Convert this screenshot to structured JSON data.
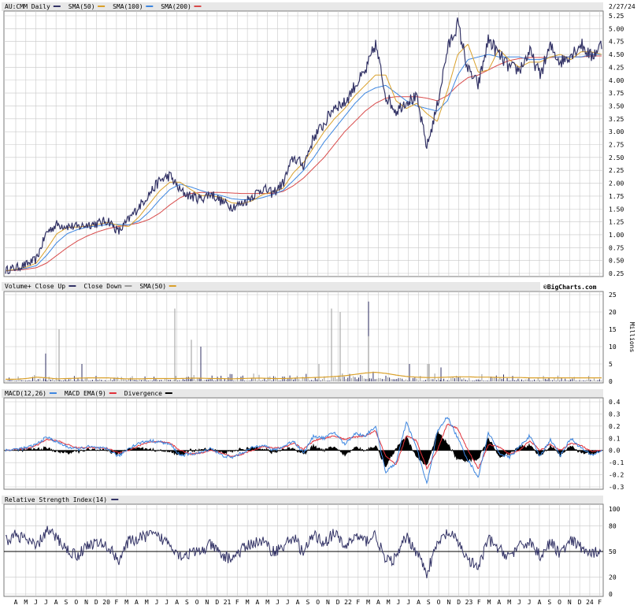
{
  "date_label": "2/27/24",
  "brand": "©BigCharts.com",
  "colors": {
    "price": "#333366",
    "sma50": "#d9a02a",
    "sma100": "#3d86e0",
    "sma200": "#d84b4b",
    "volume": "#333366",
    "volume_down": "#9a9a9a",
    "macd": "#3d86e0",
    "macd_ema": "#e0303a",
    "divergence": "#000000",
    "rsi": "#333366"
  },
  "panels": {
    "price": {
      "legend": [
        {
          "label": "AU:CMM Daily",
          "color": "#333366"
        },
        {
          "label": "SMA(50)",
          "color": "#d9a02a"
        },
        {
          "label": "SMA(100)",
          "color": "#3d86e0"
        },
        {
          "label": "SMA(200)",
          "color": "#d84b4b"
        }
      ]
    },
    "volume": {
      "legend": [
        {
          "label": "Volume+ Close Up",
          "color": "#333366"
        },
        {
          "label": "Close Down",
          "color": "#9a9a9a"
        },
        {
          "label": "SMA(50)",
          "color": "#d9a02a"
        }
      ],
      "unit_label": "Millions"
    },
    "macd": {
      "legend": [
        {
          "label": "MACD(12,26)",
          "color": "#3d86e0"
        },
        {
          "label": "MACD EMA(9)",
          "color": "#e0303a"
        },
        {
          "label": "Divergence",
          "color": "#000000"
        }
      ]
    },
    "rsi": {
      "legend": [
        {
          "label": "Relative Strength Index(14)",
          "color": "#333366"
        }
      ]
    }
  },
  "chart_data": [
    {
      "type": "line",
      "panel": "price",
      "grid": true,
      "ylim": [
        0.25,
        5.25
      ],
      "yticks": [
        "5.25",
        "5.00",
        "4.75",
        "4.50",
        "4.25",
        "4.00",
        "3.75",
        "3.50",
        "3.25",
        "3.00",
        "2.75",
        "2.50",
        "2.25",
        "2.00",
        "1.75",
        "1.50",
        "1.25",
        "1.00",
        "0.75",
        "0.50",
        "0.25"
      ],
      "xticks": [
        "A",
        "M",
        "J",
        "J",
        "A",
        "S",
        "O",
        "N",
        "D",
        "20",
        "F",
        "M",
        "A",
        "M",
        "J",
        "J",
        "A",
        "S",
        "O",
        "N",
        "D",
        "21",
        "F",
        "M",
        "A",
        "M",
        "J",
        "J",
        "A",
        "S",
        "O",
        "N",
        "D",
        "22",
        "F",
        "M",
        "A",
        "M",
        "J",
        "J",
        "A",
        "S",
        "O",
        "N",
        "D",
        "23",
        "F",
        "M",
        "A",
        "M",
        "J",
        "J",
        "A",
        "S",
        "O",
        "N",
        "D",
        "24",
        "F"
      ],
      "x_note": "monthly, April 2019 to February 2024",
      "series": [
        {
          "name": "AU:CMM Daily",
          "values": [
            0.31,
            0.36,
            0.42,
            0.52,
            1.05,
            1.2,
            1.17,
            1.15,
            1.2,
            1.22,
            1.28,
            1.05,
            1.3,
            1.55,
            1.8,
            2.05,
            2.15,
            1.85,
            1.75,
            1.7,
            1.8,
            1.65,
            1.55,
            1.6,
            1.75,
            1.9,
            1.8,
            2.0,
            2.5,
            2.35,
            2.9,
            3.15,
            3.5,
            3.55,
            3.9,
            4.15,
            4.7,
            3.7,
            3.4,
            3.6,
            3.65,
            2.7,
            3.5,
            4.6,
            5.1,
            4.2,
            3.9,
            4.8,
            4.5,
            4.25,
            4.2,
            4.55,
            4.1,
            4.65,
            4.35,
            4.5,
            4.7,
            4.45,
            4.7
          ]
        },
        {
          "name": "SMA(50)",
          "values": [
            0.3,
            0.33,
            0.37,
            0.45,
            0.72,
            1.02,
            1.14,
            1.15,
            1.17,
            1.2,
            1.24,
            1.18,
            1.16,
            1.35,
            1.6,
            1.85,
            2.02,
            2.02,
            1.88,
            1.76,
            1.76,
            1.72,
            1.62,
            1.6,
            1.66,
            1.78,
            1.83,
            1.9,
            2.2,
            2.4,
            2.7,
            3.0,
            3.25,
            3.45,
            3.7,
            3.9,
            4.1,
            4.1,
            3.6,
            3.45,
            3.55,
            3.35,
            3.2,
            3.8,
            4.5,
            4.7,
            4.15,
            4.2,
            4.6,
            4.4,
            4.25,
            4.35,
            4.35,
            4.45,
            4.5,
            4.4,
            4.55,
            4.55,
            4.5
          ]
        },
        {
          "name": "SMA(100)",
          "values": [
            0.3,
            0.32,
            0.35,
            0.4,
            0.6,
            0.85,
            1.02,
            1.1,
            1.15,
            1.17,
            1.2,
            1.2,
            1.19,
            1.27,
            1.45,
            1.68,
            1.88,
            1.98,
            1.93,
            1.86,
            1.8,
            1.76,
            1.7,
            1.68,
            1.68,
            1.72,
            1.78,
            1.86,
            2.05,
            2.25,
            2.5,
            2.8,
            3.05,
            3.3,
            3.55,
            3.75,
            3.85,
            3.9,
            3.75,
            3.6,
            3.5,
            3.45,
            3.4,
            3.6,
            4.1,
            4.4,
            4.45,
            4.5,
            4.45,
            4.45,
            4.45,
            4.4,
            4.4,
            4.45,
            4.45,
            4.45,
            4.45,
            4.5,
            4.5
          ]
        },
        {
          "name": "SMA(200)",
          "values": [
            0.3,
            0.31,
            0.33,
            0.36,
            0.45,
            0.6,
            0.75,
            0.88,
            0.98,
            1.06,
            1.12,
            1.16,
            1.19,
            1.23,
            1.3,
            1.42,
            1.58,
            1.72,
            1.8,
            1.82,
            1.82,
            1.82,
            1.81,
            1.8,
            1.8,
            1.8,
            1.8,
            1.84,
            1.95,
            2.1,
            2.3,
            2.5,
            2.75,
            3.0,
            3.2,
            3.4,
            3.55,
            3.65,
            3.68,
            3.68,
            3.68,
            3.65,
            3.6,
            3.7,
            3.9,
            4.05,
            4.1,
            4.2,
            4.3,
            4.38,
            4.42,
            4.44,
            4.44,
            4.44,
            4.45,
            4.45,
            4.45,
            4.47,
            4.47
          ]
        }
      ]
    },
    {
      "type": "bar",
      "panel": "volume",
      "ylim": [
        0,
        25
      ],
      "yticks": [
        "25",
        "20",
        "15",
        "10",
        "5",
        "0"
      ],
      "ylabel": "Millions",
      "spikes_millions": [
        8,
        6,
        15,
        5,
        21,
        12,
        10,
        21,
        20,
        23,
        13,
        5,
        5,
        5,
        5,
        4
      ],
      "sma50_millions": [
        0.6,
        0.6,
        0.8,
        1.2,
        1.0,
        0.7,
        0.8,
        0.9,
        1.0,
        1.0,
        1.0,
        0.8,
        0.7,
        0.7,
        0.8,
        0.8,
        0.8,
        0.8,
        0.9,
        0.9,
        0.8,
        0.8,
        0.7,
        0.8,
        0.9,
        0.9,
        0.8,
        0.8,
        0.9,
        1.0,
        1.1,
        1.2,
        1.4,
        1.6,
        2.0,
        2.4,
        2.6,
        2.3,
        1.8,
        1.4,
        1.2,
        1.1,
        1.1,
        1.2,
        1.3,
        1.3,
        1.2,
        1.2,
        1.1,
        1.1,
        1.1,
        1.0,
        1.0,
        1.0,
        1.0,
        1.0,
        1.0,
        1.0,
        1.0
      ]
    },
    {
      "type": "line",
      "panel": "macd",
      "ylim": [
        -0.3,
        0.4
      ],
      "yticks": [
        "0.4",
        "0.3",
        "0.2",
        "0.1",
        "0.0",
        "-0.1",
        "-0.2",
        "-0.3"
      ],
      "series": [
        {
          "name": "MACD(12,26)",
          "values": [
            0.0,
            0.01,
            0.02,
            0.05,
            0.11,
            0.07,
            0.03,
            0.01,
            0.03,
            0.02,
            0.01,
            -0.05,
            0.02,
            0.06,
            0.08,
            0.07,
            0.05,
            -0.04,
            -0.03,
            -0.02,
            0.02,
            -0.04,
            -0.06,
            -0.02,
            0.02,
            0.05,
            0.0,
            0.03,
            0.08,
            -0.02,
            0.12,
            0.1,
            0.15,
            0.05,
            0.14,
            0.12,
            0.2,
            -0.18,
            -0.1,
            0.23,
            0.02,
            -0.28,
            0.15,
            0.28,
            0.1,
            -0.08,
            -0.22,
            0.15,
            -0.02,
            -0.06,
            0.03,
            0.12,
            -0.05,
            0.09,
            -0.04,
            0.1,
            0.02,
            -0.04,
            0.0
          ]
        },
        {
          "name": "MACD EMA(9)",
          "values": [
            0.0,
            0.01,
            0.015,
            0.04,
            0.09,
            0.08,
            0.05,
            0.02,
            0.025,
            0.02,
            0.015,
            -0.02,
            0.0,
            0.04,
            0.07,
            0.07,
            0.06,
            0.0,
            -0.03,
            -0.02,
            0.0,
            -0.02,
            -0.05,
            -0.03,
            0.0,
            0.03,
            0.02,
            0.02,
            0.06,
            0.01,
            0.08,
            0.1,
            0.12,
            0.09,
            0.11,
            0.12,
            0.16,
            -0.05,
            -0.12,
            0.12,
            0.08,
            -0.15,
            0.0,
            0.22,
            0.18,
            0.0,
            -0.15,
            0.05,
            0.03,
            -0.03,
            0.0,
            0.08,
            0.0,
            0.05,
            0.0,
            0.06,
            0.04,
            -0.01,
            0.0
          ]
        }
      ]
    },
    {
      "type": "line",
      "panel": "rsi",
      "ylim": [
        0,
        100
      ],
      "yticks": [
        "100",
        "80",
        "50",
        "20",
        "0"
      ],
      "reference": 50,
      "series": [
        {
          "name": "Relative Strength Index(14)",
          "values": [
            62,
            70,
            64,
            55,
            75,
            66,
            52,
            45,
            58,
            60,
            55,
            40,
            62,
            65,
            70,
            66,
            60,
            45,
            48,
            50,
            58,
            45,
            42,
            52,
            60,
            62,
            50,
            55,
            68,
            48,
            70,
            60,
            72,
            55,
            68,
            62,
            70,
            38,
            42,
            68,
            50,
            25,
            58,
            72,
            62,
            40,
            30,
            65,
            52,
            45,
            55,
            62,
            45,
            60,
            48,
            62,
            55,
            45,
            55
          ]
        }
      ]
    }
  ]
}
